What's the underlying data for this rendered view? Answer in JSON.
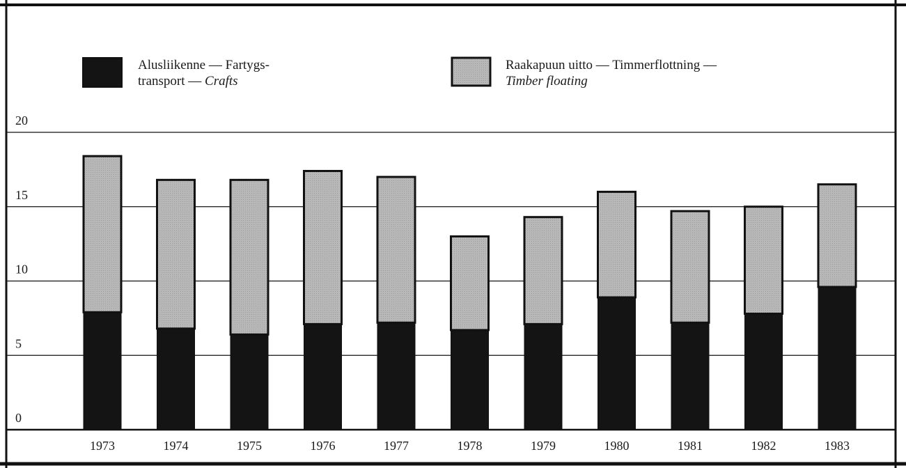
{
  "chart_data": {
    "type": "bar",
    "stacked": true,
    "categories": [
      "1973",
      "1974",
      "1975",
      "1976",
      "1977",
      "1978",
      "1979",
      "1980",
      "1981",
      "1982",
      "1983"
    ],
    "series": [
      {
        "name_lines": [
          "Alusliikenne — Fartygs-",
          "transport — ",
          "Crafts"
        ],
        "color": "#141414",
        "values": [
          7.9,
          6.8,
          6.4,
          7.1,
          7.2,
          6.7,
          7.1,
          8.9,
          7.2,
          7.8,
          9.6
        ]
      },
      {
        "name_lines": [
          "Raakapuun uitto — Timmerflottning —",
          "Timber floating"
        ],
        "color": "#b3b3b3",
        "values": [
          10.5,
          10.0,
          10.4,
          10.3,
          9.8,
          6.3,
          7.2,
          7.1,
          7.5,
          7.2,
          6.9
        ]
      }
    ],
    "y_ticks": [
      "0",
      "5",
      "10",
      "15",
      "20"
    ],
    "ylim": [
      0,
      20
    ],
    "grid": "horizontal",
    "legend_position": "top"
  }
}
